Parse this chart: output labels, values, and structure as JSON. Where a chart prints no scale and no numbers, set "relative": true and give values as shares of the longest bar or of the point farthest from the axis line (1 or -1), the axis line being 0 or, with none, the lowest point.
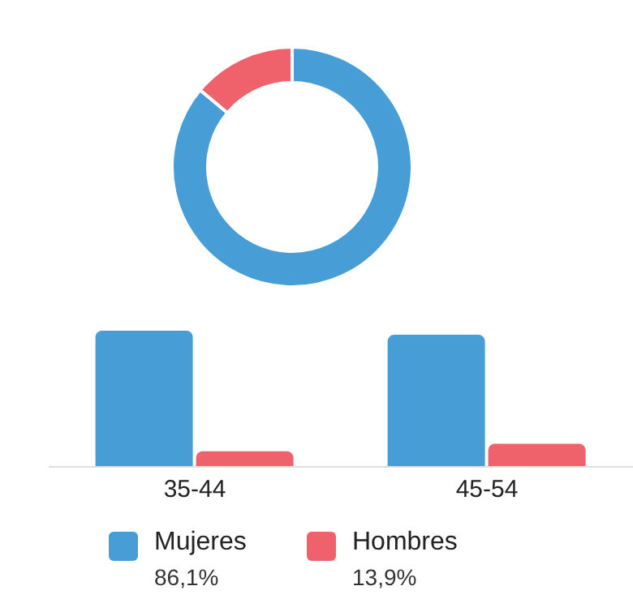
{
  "chart_data": [
    {
      "type": "donut",
      "categories": [
        "Mujeres",
        "Hombres"
      ],
      "values": [
        86.1,
        13.9
      ],
      "colors": [
        "#479ed7",
        "#ef626c"
      ],
      "value_labels": [
        "86,1%",
        "13,9%"
      ],
      "legend": "bottom"
    },
    {
      "type": "bar",
      "categories": [
        "35-44",
        "45-54"
      ],
      "relative": true,
      "series": [
        {
          "color": "#479ed7",
          "values": [
            1,
            0.97
          ]
        },
        {
          "color": "#ef626c",
          "values": [
            0.114,
            0.17
          ]
        }
      ]
    }
  ]
}
